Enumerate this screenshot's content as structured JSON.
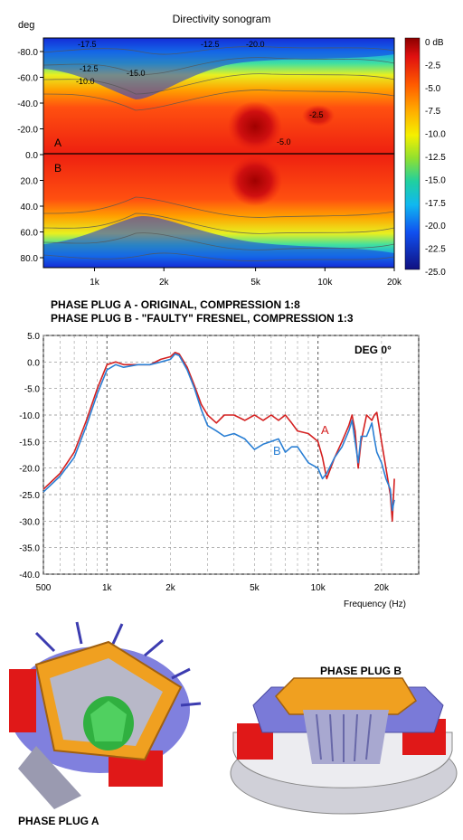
{
  "sonogram": {
    "title": "Directivity sonogram",
    "y_unit": "deg",
    "y_ticks": [
      "-80.0",
      "-60.0",
      "-40.0",
      "-20.0",
      "0.0",
      "20.0",
      "40.0",
      "60.0",
      "80.0"
    ],
    "x_ticks": [
      "1k",
      "2k",
      "5k",
      "10k",
      "20k"
    ],
    "colorbar_ticks": [
      "0 dB",
      "-2.5",
      "-5.0",
      "-7.5",
      "-10.0",
      "-12.5",
      "-15.0",
      "-17.5",
      "-20.0",
      "-22.5",
      "-25.0"
    ],
    "region_labels": [
      "A",
      "B"
    ],
    "contour_labels": [
      "-17.5",
      "-12.5",
      "-10.0",
      "-15.0",
      "-12.5",
      "-20.0",
      "-2.5",
      "-5.0"
    ]
  },
  "captions": {
    "line1": "PHASE PLUG A - ORIGINAL, COMPRESSION 1:8",
    "line2": "PHASE PLUG B - \"FAULTY\" FRESNEL, COMPRESSION 1:3"
  },
  "chart_data": {
    "type": "line",
    "title": "DEG 0°",
    "xlabel": "Frequency (Hz)",
    "ylabel": "",
    "x_scale": "log",
    "xlim": [
      500,
      30000
    ],
    "ylim": [
      -40,
      5
    ],
    "grid": true,
    "y_ticks": [
      "5.0",
      "0.0",
      "-5.0",
      "-10.0",
      "-15.0",
      "-20.0",
      "-25.0",
      "-30.0",
      "-35.0",
      "-40.0"
    ],
    "x_ticks": [
      "500",
      "1k",
      "2k",
      "5k",
      "10k",
      "20k"
    ],
    "series": [
      {
        "name": "A",
        "color": "#d42020",
        "x": [
          500,
          600,
          700,
          800,
          900,
          1000,
          1100,
          1200,
          1400,
          1600,
          1800,
          2000,
          2100,
          2200,
          2400,
          2600,
          2800,
          3000,
          3300,
          3600,
          4000,
          4500,
          5000,
          5500,
          6000,
          6500,
          7000,
          7500,
          8000,
          9000,
          10000,
          10500,
          11000,
          12000,
          13000,
          14000,
          14500,
          15000,
          15500,
          16000,
          17000,
          18000,
          18500,
          19000,
          20000,
          21000,
          22000,
          22500,
          23000
        ],
        "values": [
          -24,
          -21,
          -17,
          -11,
          -5,
          -0.5,
          0,
          -0.5,
          -0.5,
          -0.5,
          0.5,
          1,
          1.8,
          1.5,
          -1,
          -4.5,
          -8,
          -10,
          -11.5,
          -10,
          -10,
          -11,
          -10,
          -11,
          -10,
          -11,
          -10,
          -11.5,
          -13,
          -13.5,
          -15,
          -18,
          -22,
          -18,
          -15,
          -12,
          -10,
          -13,
          -20,
          -15,
          -10,
          -11,
          -10,
          -9.5,
          -15,
          -20,
          -25,
          -30,
          -22
        ]
      },
      {
        "name": "B",
        "color": "#2a7fd4",
        "x": [
          500,
          600,
          700,
          800,
          900,
          1000,
          1100,
          1200,
          1400,
          1600,
          1800,
          2000,
          2100,
          2200,
          2400,
          2600,
          2800,
          3000,
          3300,
          3600,
          4000,
          4500,
          5000,
          5500,
          6000,
          6500,
          7000,
          7500,
          8000,
          9000,
          10000,
          10500,
          11000,
          12000,
          13000,
          14000,
          14500,
          15000,
          15500,
          16000,
          17000,
          18000,
          18500,
          19000,
          20000,
          21000,
          22000,
          22500,
          23000
        ],
        "values": [
          -24.5,
          -21.5,
          -18,
          -12,
          -6,
          -1.5,
          -0.5,
          -1,
          -0.5,
          -0.5,
          0,
          0.5,
          1.5,
          1.2,
          -1.5,
          -5,
          -9,
          -12,
          -13,
          -14,
          -13.5,
          -14.5,
          -16.5,
          -15.5,
          -15,
          -14.5,
          -17,
          -16,
          -16,
          -19,
          -20,
          -22,
          -21,
          -18,
          -16,
          -13,
          -11,
          -15,
          -19,
          -14,
          -14,
          -11.5,
          -14.5,
          -17,
          -19,
          -22,
          -24,
          -28,
          -26
        ]
      }
    ],
    "annotations": [
      "A",
      "B"
    ]
  },
  "plugs": {
    "a_label": "PHASE PLUG A",
    "b_label": "PHASE PLUG B"
  }
}
